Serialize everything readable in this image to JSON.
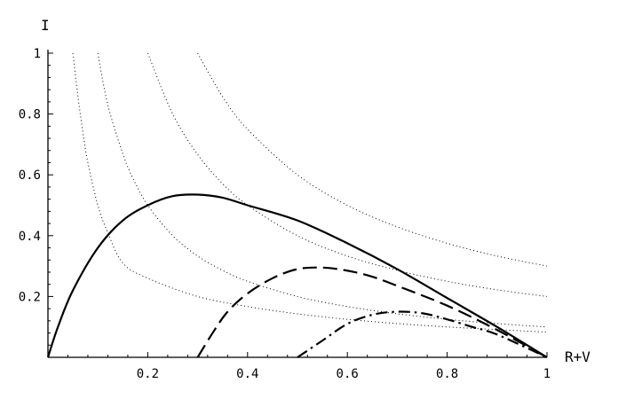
{
  "chart_data": {
    "type": "line",
    "title": "",
    "xlabel": "R+V",
    "ylabel": "I",
    "xlim": [
      0,
      1
    ],
    "ylim": [
      0,
      1
    ],
    "grid": false,
    "x_ticks": [
      0.2,
      0.4,
      0.6,
      0.8,
      1
    ],
    "x_tick_labels": [
      "0.2",
      "0.4",
      "0.6",
      "0.8",
      "1"
    ],
    "y_ticks": [
      0.2,
      0.4,
      0.6,
      0.8,
      1
    ],
    "y_tick_labels": [
      "0.2",
      "0.4",
      "0.6",
      "0.8",
      "1"
    ],
    "series": [
      {
        "style": "solid",
        "x": [
          0,
          0.02,
          0.05,
          0.1,
          0.15,
          0.2,
          0.25,
          0.3,
          0.35,
          0.4,
          0.5,
          0.6,
          0.7,
          0.8,
          0.9,
          1.0
        ],
        "y": [
          0,
          0.1,
          0.22,
          0.36,
          0.45,
          0.5,
          0.53,
          0.535,
          0.525,
          0.5,
          0.45,
          0.375,
          0.29,
          0.195,
          0.1,
          0
        ]
      },
      {
        "style": "dashed",
        "x": [
          0.3,
          0.33,
          0.36,
          0.4,
          0.45,
          0.5,
          0.55,
          0.6,
          0.65,
          0.7,
          0.8,
          0.9,
          1.0
        ],
        "y": [
          0,
          0.08,
          0.15,
          0.21,
          0.26,
          0.29,
          0.295,
          0.285,
          0.265,
          0.235,
          0.17,
          0.09,
          0
        ]
      },
      {
        "style": "dash-dot",
        "x": [
          0.5,
          0.55,
          0.6,
          0.65,
          0.7,
          0.75,
          0.8,
          0.85,
          0.9,
          1.0
        ],
        "y": [
          0,
          0.055,
          0.11,
          0.14,
          0.15,
          0.145,
          0.125,
          0.1,
          0.075,
          0
        ]
      },
      {
        "style": "dotted",
        "x": [
          0.1,
          0.12,
          0.15,
          0.17,
          0.2,
          0.25,
          0.3,
          0.35,
          0.4,
          0.5,
          0.6,
          0.7,
          0.8,
          0.9,
          1.0
        ],
        "y": [
          1.0,
          0.83,
          0.67,
          0.59,
          0.5,
          0.4,
          0.333,
          0.286,
          0.25,
          0.2,
          0.167,
          0.143,
          0.125,
          0.111,
          0.1
        ]
      },
      {
        "style": "dotted",
        "x": [
          0.05,
          0.06,
          0.07,
          0.08,
          0.1,
          0.12,
          0.15,
          0.2,
          0.3,
          0.4,
          0.5,
          0.6,
          0.7,
          0.8,
          0.9,
          1.0
        ],
        "y": [
          1.0,
          0.86,
          0.74,
          0.64,
          0.5,
          0.41,
          0.31,
          0.26,
          0.2,
          0.167,
          0.143,
          0.125,
          0.111,
          0.1,
          0.091,
          0.083
        ]
      },
      {
        "style": "dotted",
        "x": [
          0.2,
          0.25,
          0.3,
          0.35,
          0.4,
          0.5,
          0.6,
          0.7,
          0.8,
          0.9,
          1.0
        ],
        "y": [
          1.0,
          0.8,
          0.667,
          0.571,
          0.5,
          0.4,
          0.333,
          0.286,
          0.25,
          0.222,
          0.2
        ]
      },
      {
        "style": "dotted",
        "x": [
          0.3,
          0.35,
          0.4,
          0.5,
          0.6,
          0.7,
          0.8,
          0.9,
          1.0
        ],
        "y": [
          1.0,
          0.857,
          0.75,
          0.6,
          0.5,
          0.429,
          0.375,
          0.333,
          0.3
        ]
      }
    ]
  }
}
